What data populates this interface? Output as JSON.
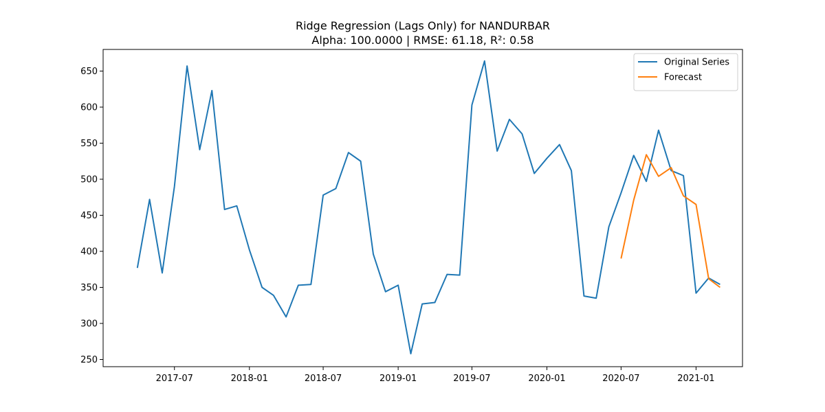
{
  "chart_data": {
    "type": "line",
    "title": "Ridge Regression (Lags Only) for NANDURBAR",
    "subtitle": "Alpha: 100.0000 | RMSE: 61.18, R²: 0.58",
    "xlabel": "",
    "ylabel": "",
    "xlim": [
      "2017-01-07",
      "2021-04-25"
    ],
    "ylim": [
      240,
      680
    ],
    "x_ticks": [
      "2017-07",
      "2018-01",
      "2018-07",
      "2019-01",
      "2019-07",
      "2020-01",
      "2020-07",
      "2021-01"
    ],
    "y_ticks": [
      250,
      300,
      350,
      400,
      450,
      500,
      550,
      600,
      650
    ],
    "grid": false,
    "legend_position": "top-right",
    "series": [
      {
        "name": "Original Series",
        "color": "#1f77b4",
        "x": [
          "2017-04-01",
          "2017-05-01",
          "2017-06-01",
          "2017-07-01",
          "2017-08-01",
          "2017-09-01",
          "2017-10-01",
          "2017-11-01",
          "2017-12-01",
          "2018-01-01",
          "2018-02-01",
          "2018-03-01",
          "2018-04-01",
          "2018-05-01",
          "2018-06-01",
          "2018-07-01",
          "2018-08-01",
          "2018-09-01",
          "2018-10-01",
          "2018-11-01",
          "2018-12-01",
          "2019-01-01",
          "2019-02-01",
          "2019-03-01",
          "2019-04-01",
          "2019-05-01",
          "2019-06-01",
          "2019-07-01",
          "2019-08-01",
          "2019-09-01",
          "2019-10-01",
          "2019-11-01",
          "2019-12-01",
          "2020-01-01",
          "2020-02-01",
          "2020-03-01",
          "2020-04-01",
          "2020-05-01",
          "2020-06-01",
          "2020-07-01",
          "2020-08-01",
          "2020-09-01",
          "2020-10-01",
          "2020-11-01",
          "2020-12-01",
          "2021-01-01",
          "2021-02-01",
          "2021-03-01"
        ],
        "values": [
          377,
          472,
          370,
          490,
          657,
          541,
          623,
          458,
          463,
          402,
          350,
          339,
          309,
          353,
          354,
          478,
          487,
          537,
          525,
          396,
          344,
          353,
          258,
          327,
          329,
          368,
          367,
          603,
          664,
          539,
          583,
          563,
          508,
          529,
          548,
          512,
          338,
          335,
          434,
          481,
          533,
          497,
          568,
          512,
          505,
          342,
          363,
          354
        ]
      },
      {
        "name": "Forecast",
        "color": "#ff7f0e",
        "x": [
          "2020-07-01",
          "2020-08-01",
          "2020-09-01",
          "2020-10-01",
          "2020-11-01",
          "2020-12-01",
          "2021-01-01",
          "2021-02-01",
          "2021-03-01"
        ],
        "values": [
          390,
          471,
          534,
          504,
          516,
          477,
          465,
          362,
          350
        ]
      }
    ]
  }
}
